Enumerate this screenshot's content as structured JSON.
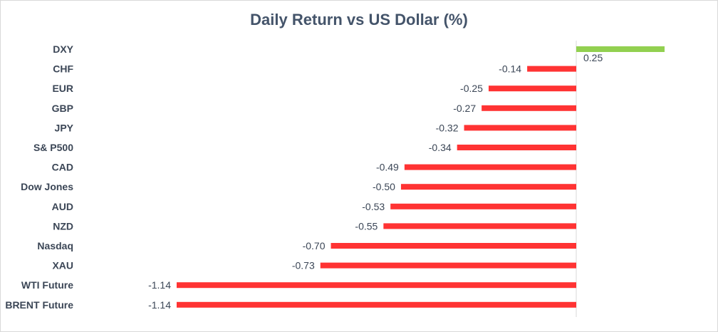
{
  "chart_data": {
    "type": "bar",
    "orientation": "horizontal",
    "title": "Daily Return vs US Dollar (%)",
    "categories": [
      "DXY",
      "CHF",
      "EUR",
      "GBP",
      "JPY",
      "S& P500",
      "CAD",
      "Dow Jones",
      "AUD",
      "NZD",
      "Nasdaq",
      "XAU",
      "WTI Future",
      "BRENT Future"
    ],
    "values": [
      0.25,
      -0.14,
      -0.25,
      -0.27,
      -0.32,
      -0.34,
      -0.49,
      -0.5,
      -0.53,
      -0.55,
      -0.7,
      -0.73,
      -1.14,
      -1.14
    ],
    "value_labels": [
      "0.25",
      "-0.14",
      "-0.25",
      "-0.27",
      "-0.32",
      "-0.34",
      "-0.49",
      "-0.50",
      "-0.53",
      "-0.55",
      "-0.70",
      "-0.73",
      "-1.14",
      "-1.14"
    ],
    "xlim": [
      -1.14,
      0.25
    ],
    "xlabel": "",
    "ylabel": "",
    "grid": false,
    "legend": "none",
    "colors": {
      "positive": "#92d050",
      "negative": "#ff3333",
      "axis": "#d9d9d9",
      "text": "#3b4656",
      "title": "#44546a"
    }
  }
}
